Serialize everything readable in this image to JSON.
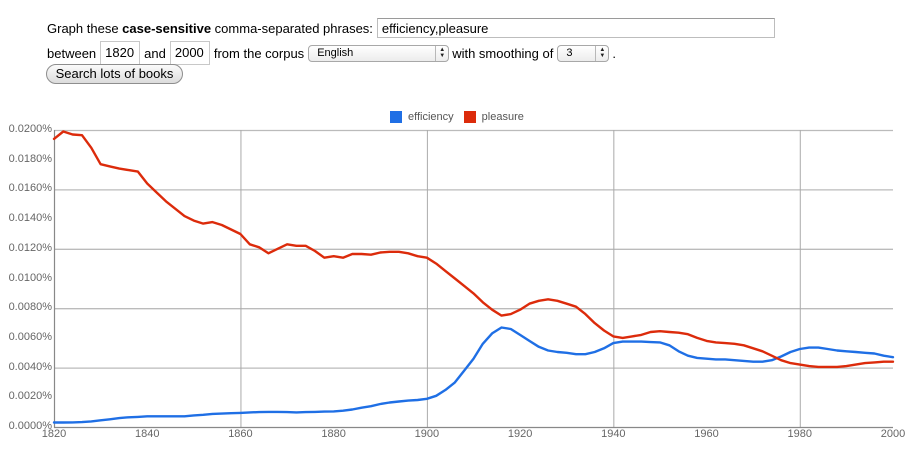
{
  "form": {
    "label_prefix": "Graph these ",
    "label_bold": "case-sensitive",
    "label_suffix": " comma-separated phrases:",
    "phrases_value": "efficiency,pleasure",
    "between_label": "between",
    "start_year": "1820",
    "and_label": "and",
    "end_year": "2000",
    "corpus_label": "from the corpus",
    "corpus_value": "English",
    "smoothing_label": "with smoothing of",
    "smoothing_value": "3",
    "period": ".",
    "search_button": "Search lots of books"
  },
  "icons": {
    "select_arrows": "updown-arrows-icon",
    "legend_swatch": "square-swatch-icon"
  },
  "colors": {
    "efficiency": "#1f6fe5",
    "pleasure": "#dc2b0b",
    "grid": "#bbbbbb",
    "axis": "#888888"
  },
  "chart_data": {
    "type": "line",
    "title": "",
    "xlabel": "",
    "ylabel": "",
    "xlim": [
      1820,
      2000
    ],
    "ylim": [
      0,
      0.02
    ],
    "y_unit": "%",
    "y_ticks": [
      "0.0200%",
      "0.0180%",
      "0.0160%",
      "0.0140%",
      "0.0120%",
      "0.0100%",
      "0.0080%",
      "0.0060%",
      "0.0040%",
      "0.0020%",
      "0.0000%"
    ],
    "x_ticks": [
      "1820",
      "1840",
      "1860",
      "1880",
      "1900",
      "1920",
      "1940",
      "1960",
      "1980",
      "2000"
    ],
    "grid": {
      "x": [
        1860,
        1900,
        1940,
        1980
      ],
      "y": [
        0.004,
        0.008,
        0.012,
        0.016
      ]
    },
    "legend_position": "top",
    "x": [
      1820,
      1822,
      1824,
      1826,
      1828,
      1830,
      1832,
      1834,
      1836,
      1838,
      1840,
      1842,
      1844,
      1846,
      1848,
      1850,
      1852,
      1854,
      1856,
      1858,
      1860,
      1862,
      1864,
      1866,
      1868,
      1870,
      1872,
      1874,
      1876,
      1878,
      1880,
      1882,
      1884,
      1886,
      1888,
      1890,
      1892,
      1894,
      1896,
      1898,
      1900,
      1902,
      1904,
      1906,
      1908,
      1910,
      1912,
      1914,
      1916,
      1918,
      1920,
      1922,
      1924,
      1926,
      1928,
      1930,
      1932,
      1934,
      1936,
      1938,
      1940,
      1942,
      1944,
      1946,
      1948,
      1950,
      1952,
      1954,
      1956,
      1958,
      1960,
      1962,
      1964,
      1966,
      1968,
      1970,
      1972,
      1974,
      1976,
      1978,
      1980,
      1982,
      1984,
      1986,
      1988,
      1990,
      1992,
      1994,
      1996,
      1998,
      2000
    ],
    "series": [
      {
        "name": "efficiency",
        "values": [
          0.0003,
          0.0003,
          0.00031,
          0.00033,
          0.00038,
          0.00045,
          0.00052,
          0.0006,
          0.00065,
          0.00068,
          0.00072,
          0.00072,
          0.00072,
          0.00072,
          0.00072,
          0.00078,
          0.00082,
          0.00088,
          0.0009,
          0.00093,
          0.00095,
          0.00098,
          0.001,
          0.00102,
          0.00102,
          0.001,
          0.00098,
          0.001,
          0.00102,
          0.00104,
          0.00105,
          0.0011,
          0.00118,
          0.0013,
          0.0014,
          0.00155,
          0.00165,
          0.00172,
          0.00178,
          0.00182,
          0.0019,
          0.0021,
          0.0025,
          0.003,
          0.0038,
          0.0046,
          0.0056,
          0.0063,
          0.0067,
          0.0066,
          0.0062,
          0.0058,
          0.0054,
          0.00515,
          0.00505,
          0.005,
          0.0049,
          0.0049,
          0.00505,
          0.0053,
          0.00565,
          0.00575,
          0.00575,
          0.00575,
          0.00572,
          0.0057,
          0.0055,
          0.0051,
          0.0048,
          0.00465,
          0.0046,
          0.00455,
          0.00455,
          0.0045,
          0.00445,
          0.0044,
          0.0044,
          0.0045,
          0.00475,
          0.00505,
          0.00525,
          0.00535,
          0.00535,
          0.00525,
          0.00515,
          0.0051,
          0.00505,
          0.005,
          0.00495,
          0.0048,
          0.0047
        ]
      },
      {
        "name": "pleasure",
        "values": [
          0.0194,
          0.0199,
          0.0197,
          0.01965,
          0.0188,
          0.0177,
          0.01755,
          0.0174,
          0.0173,
          0.0172,
          0.0164,
          0.0158,
          0.0152,
          0.0147,
          0.0142,
          0.0139,
          0.0137,
          0.0138,
          0.0136,
          0.0133,
          0.013,
          0.0123,
          0.0121,
          0.0117,
          0.012,
          0.0123,
          0.0122,
          0.0122,
          0.01185,
          0.0114,
          0.0115,
          0.0114,
          0.01165,
          0.01165,
          0.0116,
          0.01175,
          0.0118,
          0.0118,
          0.0117,
          0.0115,
          0.0114,
          0.011,
          0.0105,
          0.01,
          0.0095,
          0.009,
          0.0084,
          0.0079,
          0.0075,
          0.0076,
          0.0079,
          0.0083,
          0.0085,
          0.0086,
          0.0085,
          0.0083,
          0.0081,
          0.0076,
          0.007,
          0.0065,
          0.0061,
          0.006,
          0.0061,
          0.0062,
          0.0064,
          0.00645,
          0.0064,
          0.00635,
          0.00625,
          0.006,
          0.0058,
          0.0057,
          0.00565,
          0.0056,
          0.0055,
          0.0053,
          0.0051,
          0.0048,
          0.0045,
          0.0043,
          0.0042,
          0.0041,
          0.00405,
          0.00405,
          0.00405,
          0.0041,
          0.0042,
          0.0043,
          0.00435,
          0.0044,
          0.0044
        ]
      }
    ]
  }
}
